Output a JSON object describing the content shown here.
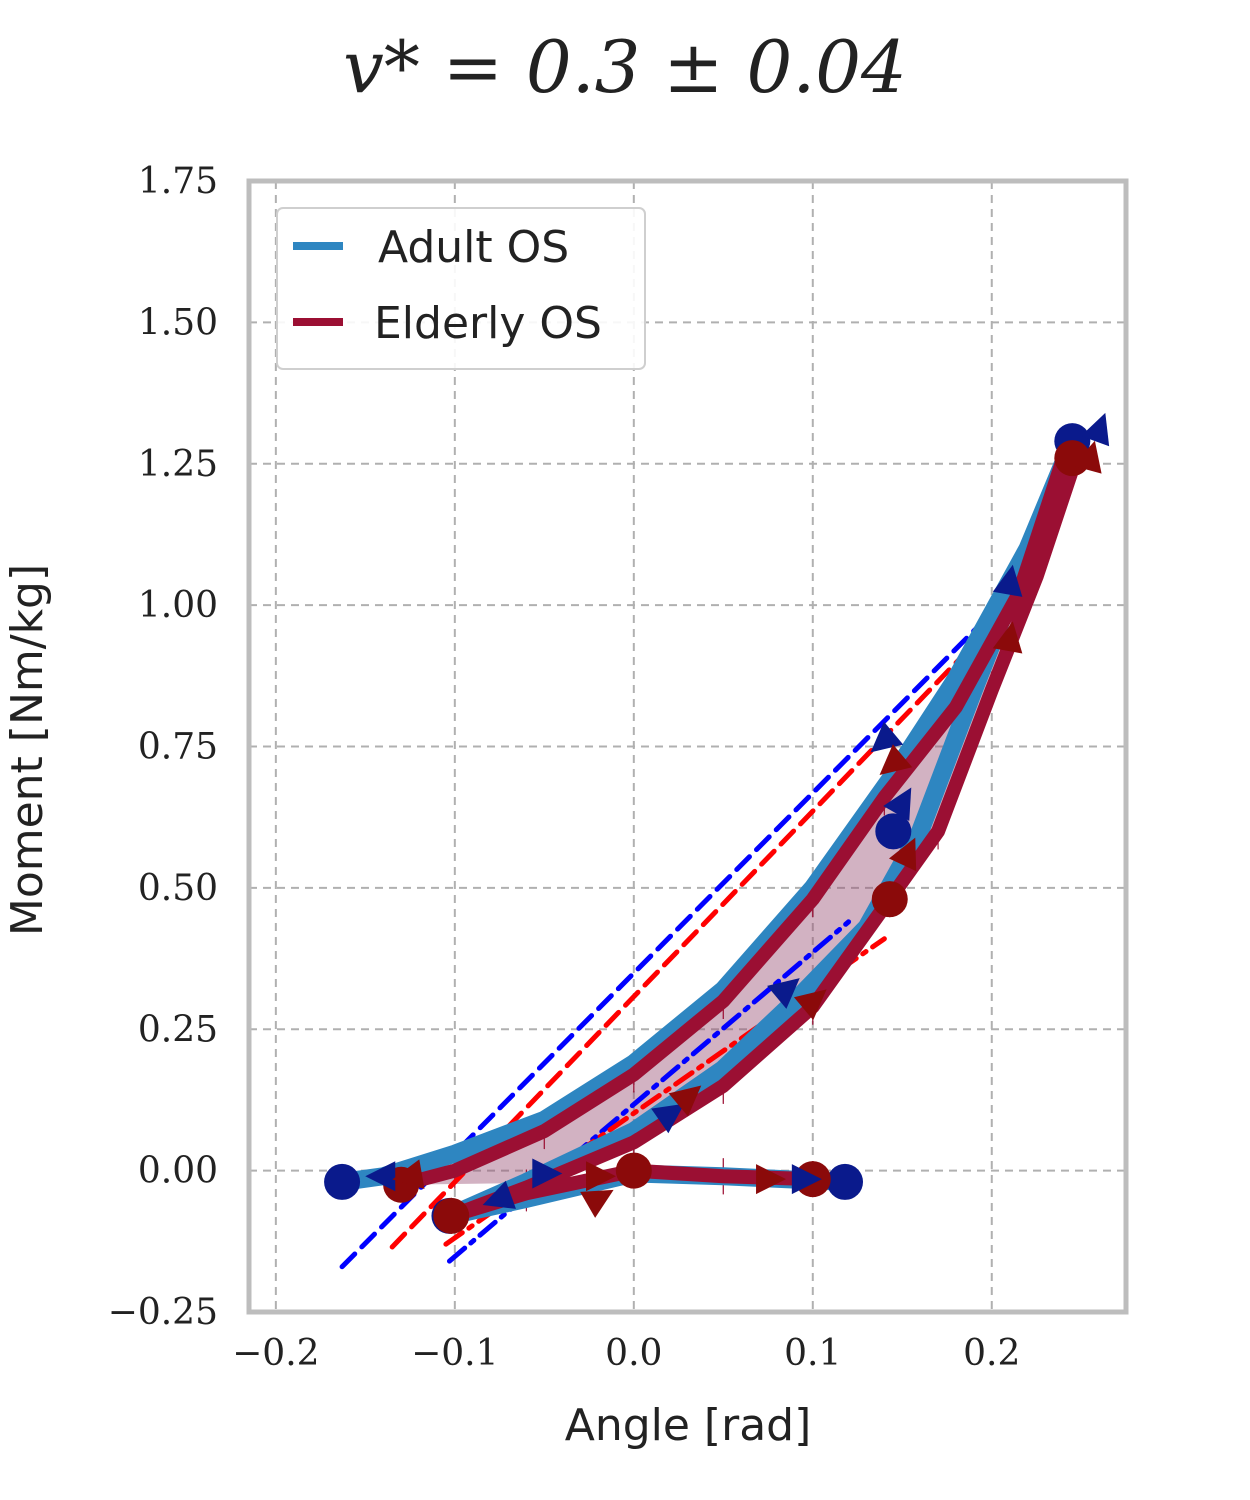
{
  "chart_data": {
    "type": "line",
    "title": "v* = 0.3 ± 0.04",
    "xlabel": "Angle [rad]",
    "ylabel": "Moment [Nm/kg]",
    "xlim": [
      -0.215,
      0.275
    ],
    "ylim": [
      -0.25,
      1.75
    ],
    "xticks": [
      -0.2,
      -0.1,
      0.0,
      0.1,
      0.2
    ],
    "xtick_labels": [
      "−0.2",
      "−0.1",
      "0.0",
      "0.1",
      "0.2"
    ],
    "yticks": [
      -0.25,
      0.0,
      0.25,
      0.5,
      0.75,
      1.0,
      1.25,
      1.5,
      1.75
    ],
    "ytick_labels": [
      "−0.25",
      "0.00",
      "0.25",
      "0.50",
      "0.75",
      "1.00",
      "1.25",
      "1.50",
      "1.75"
    ],
    "grid": true,
    "legend_position": "top-left",
    "series": [
      {
        "name": "Adult OS",
        "color": "#2e86c1",
        "x": [
          0.118,
          0.05,
          0.0,
          -0.06,
          -0.103,
          -0.06,
          0.0,
          0.05,
          0.09,
          0.13,
          0.16,
          0.19,
          0.215,
          0.24,
          0.245,
          0.22,
          0.18,
          0.145,
          0.1,
          0.05,
          0.0,
          -0.05,
          -0.1,
          -0.14,
          -0.163
        ],
        "y": [
          -0.02,
          -0.01,
          -0.005,
          -0.05,
          -0.08,
          -0.02,
          0.07,
          0.18,
          0.3,
          0.43,
          0.6,
          0.85,
          1.05,
          1.25,
          1.29,
          1.1,
          0.87,
          0.7,
          0.5,
          0.32,
          0.19,
          0.09,
          0.03,
          -0.01,
          -0.02
        ]
      },
      {
        "name": "Elderly OS",
        "color": "#9b0f33",
        "x": [
          0.1,
          0.05,
          0.0,
          -0.06,
          -0.102,
          -0.06,
          0.0,
          0.05,
          0.1,
          0.143,
          0.17,
          0.2,
          0.225,
          0.245,
          0.24,
          0.215,
          0.18,
          0.14,
          0.1,
          0.05,
          0.0,
          -0.05,
          -0.1,
          -0.13
        ],
        "y": [
          -0.015,
          -0.01,
          0.0,
          -0.04,
          -0.08,
          -0.03,
          0.05,
          0.15,
          0.29,
          0.48,
          0.6,
          0.85,
          1.05,
          1.24,
          1.26,
          1.02,
          0.82,
          0.66,
          0.48,
          0.3,
          0.17,
          0.07,
          0.0,
          -0.025
        ]
      }
    ],
    "points": {
      "adult": [
        [
          -0.163,
          -0.02
        ],
        [
          -0.103,
          -0.08
        ],
        [
          0.118,
          -0.02
        ],
        [
          0.245,
          1.29
        ],
        [
          0.145,
          0.6
        ]
      ],
      "elderly": [
        [
          -0.13,
          -0.025
        ],
        [
          -0.102,
          -0.08
        ],
        [
          0.0,
          0.0
        ],
        [
          0.1,
          -0.015
        ],
        [
          0.143,
          0.48
        ],
        [
          0.245,
          1.26
        ]
      ]
    },
    "arrows": {
      "adult": [
        [
          -0.14,
          -0.01,
          180
        ],
        [
          -0.05,
          -0.005,
          0
        ],
        [
          -0.075,
          -0.05,
          200
        ],
        [
          0.02,
          0.1,
          35
        ],
        [
          0.085,
          0.32,
          40
        ],
        [
          0.15,
          0.65,
          60
        ],
        [
          0.21,
          1.04,
          80
        ],
        [
          0.26,
          1.31,
          70
        ],
        [
          0.14,
          0.76,
          220
        ],
        [
          0.095,
          -0.015,
          0
        ]
      ],
      "elderly": [
        [
          -0.125,
          -0.01,
          190
        ],
        [
          -0.02,
          -0.01,
          0
        ],
        [
          -0.02,
          -0.05,
          30
        ],
        [
          0.03,
          0.13,
          40
        ],
        [
          0.1,
          0.3,
          40
        ],
        [
          0.153,
          0.56,
          65
        ],
        [
          0.21,
          0.94,
          80
        ],
        [
          0.255,
          1.26,
          75
        ],
        [
          0.145,
          0.72,
          220
        ],
        [
          0.075,
          -0.015,
          0
        ]
      ]
    },
    "fit_lines": {
      "adult_dashed": [
        [
          -0.163,
          -0.17
        ],
        [
          0.22,
          1.05
        ]
      ],
      "elderly_dashed": [
        [
          -0.135,
          -0.135
        ],
        [
          0.205,
          0.98
        ]
      ],
      "adult_dashdot": [
        [
          -0.103,
          -0.16
        ],
        [
          0.12,
          0.44
        ]
      ],
      "elderly_dashdot": [
        [
          -0.105,
          -0.13
        ],
        [
          0.14,
          0.41
        ]
      ],
      "adult_dotted": [
        [
          0.145,
          0.5
        ],
        [
          0.245,
          1.27
        ]
      ],
      "elderly_dotted": [
        [
          0.14,
          0.46
        ],
        [
          0.23,
          1.2
        ]
      ],
      "adult_dotted_low": [
        [
          -0.103,
          -0.08
        ],
        [
          0.0,
          0.0
        ]
      ],
      "elderly_dotted_low": [
        [
          -0.1,
          -0.08
        ],
        [
          0.0,
          0.0
        ]
      ]
    }
  },
  "legend": {
    "items": [
      {
        "label": "Adult OS",
        "color": "#2e86c1"
      },
      {
        "label": "Elderly OS",
        "color": "#9b0f33"
      }
    ]
  }
}
